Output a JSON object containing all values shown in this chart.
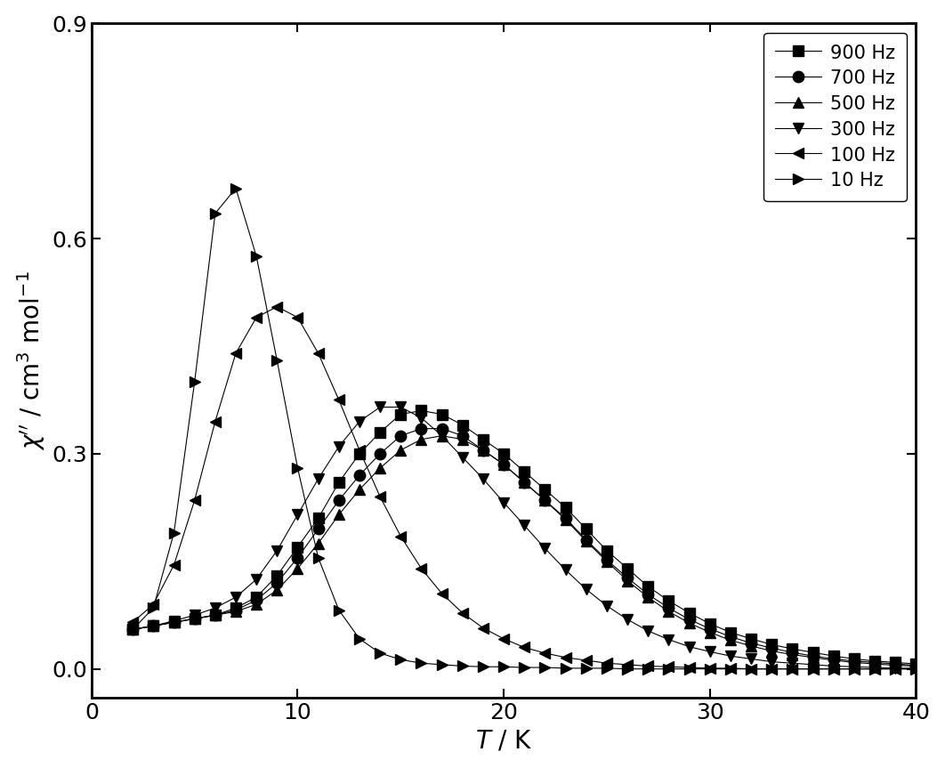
{
  "title": "",
  "xlabel": "$\\mathit{T}$ / K",
  "ylabel": "$\\chi$$^{\\prime\\prime}$ / cm$^{3}$ mol$^{-1}$",
  "xlim": [
    0,
    40
  ],
  "ylim": [
    -0.04,
    0.9
  ],
  "yticks": [
    0.0,
    0.3,
    0.6,
    0.9
  ],
  "xticks": [
    0,
    10,
    20,
    30,
    40
  ],
  "series": [
    {
      "label": "900 Hz",
      "marker": "s",
      "T": [
        2,
        3,
        4,
        5,
        6,
        7,
        8,
        9,
        10,
        11,
        12,
        13,
        14,
        15,
        16,
        17,
        18,
        19,
        20,
        21,
        22,
        23,
        24,
        25,
        26,
        27,
        28,
        29,
        30,
        31,
        32,
        33,
        34,
        35,
        36,
        37,
        38,
        39,
        40
      ],
      "chi": [
        0.055,
        0.06,
        0.065,
        0.07,
        0.075,
        0.085,
        0.1,
        0.13,
        0.17,
        0.21,
        0.26,
        0.3,
        0.33,
        0.355,
        0.36,
        0.355,
        0.34,
        0.32,
        0.3,
        0.275,
        0.25,
        0.225,
        0.195,
        0.165,
        0.14,
        0.115,
        0.095,
        0.078,
        0.063,
        0.051,
        0.042,
        0.034,
        0.028,
        0.023,
        0.018,
        0.014,
        0.011,
        0.009,
        0.007
      ]
    },
    {
      "label": "700 Hz",
      "marker": "o",
      "T": [
        2,
        3,
        4,
        5,
        6,
        7,
        8,
        9,
        10,
        11,
        12,
        13,
        14,
        15,
        16,
        17,
        18,
        19,
        20,
        21,
        22,
        23,
        24,
        25,
        26,
        27,
        28,
        29,
        30,
        31,
        32,
        33,
        34,
        35,
        36,
        37,
        38,
        39,
        40
      ],
      "chi": [
        0.055,
        0.06,
        0.065,
        0.07,
        0.075,
        0.082,
        0.096,
        0.12,
        0.155,
        0.195,
        0.235,
        0.27,
        0.3,
        0.325,
        0.335,
        0.335,
        0.325,
        0.305,
        0.285,
        0.26,
        0.235,
        0.21,
        0.18,
        0.152,
        0.127,
        0.104,
        0.085,
        0.069,
        0.056,
        0.045,
        0.036,
        0.029,
        0.023,
        0.018,
        0.014,
        0.011,
        0.009,
        0.007,
        0.005
      ]
    },
    {
      "label": "500 Hz",
      "marker": "^",
      "T": [
        2,
        3,
        4,
        5,
        6,
        7,
        8,
        9,
        10,
        11,
        12,
        13,
        14,
        15,
        16,
        17,
        18,
        19,
        20,
        21,
        22,
        23,
        24,
        25,
        26,
        27,
        28,
        29,
        30,
        31,
        32,
        33,
        34,
        35,
        36,
        37,
        38,
        39,
        40
      ],
      "chi": [
        0.055,
        0.06,
        0.065,
        0.07,
        0.075,
        0.08,
        0.09,
        0.11,
        0.14,
        0.175,
        0.215,
        0.25,
        0.28,
        0.305,
        0.32,
        0.325,
        0.32,
        0.305,
        0.285,
        0.26,
        0.235,
        0.208,
        0.178,
        0.15,
        0.123,
        0.1,
        0.08,
        0.064,
        0.051,
        0.04,
        0.032,
        0.025,
        0.02,
        0.016,
        0.012,
        0.009,
        0.007,
        0.005,
        0.004
      ]
    },
    {
      "label": "300 Hz",
      "marker": "v",
      "T": [
        2,
        3,
        4,
        5,
        6,
        7,
        8,
        9,
        10,
        11,
        12,
        13,
        14,
        15,
        16,
        17,
        18,
        19,
        20,
        21,
        22,
        23,
        24,
        25,
        26,
        27,
        28,
        29,
        30,
        31,
        32,
        33,
        34,
        35,
        36,
        37,
        38,
        39,
        40
      ],
      "chi": [
        0.055,
        0.06,
        0.067,
        0.075,
        0.085,
        0.1,
        0.125,
        0.165,
        0.215,
        0.265,
        0.31,
        0.345,
        0.365,
        0.365,
        0.35,
        0.325,
        0.295,
        0.265,
        0.232,
        0.2,
        0.168,
        0.138,
        0.111,
        0.088,
        0.069,
        0.053,
        0.041,
        0.031,
        0.024,
        0.018,
        0.014,
        0.01,
        0.008,
        0.006,
        0.004,
        0.003,
        0.002,
        0.001,
        0.001
      ]
    },
    {
      "label": "100 Hz",
      "marker": "<",
      "T": [
        2,
        3,
        4,
        5,
        6,
        7,
        8,
        9,
        10,
        11,
        12,
        13,
        14,
        15,
        16,
        17,
        18,
        19,
        20,
        21,
        22,
        23,
        24,
        25,
        26,
        27,
        28,
        29,
        30,
        31,
        32,
        33,
        34,
        35,
        36,
        37,
        38,
        39,
        40
      ],
      "chi": [
        0.065,
        0.09,
        0.145,
        0.235,
        0.345,
        0.44,
        0.49,
        0.505,
        0.49,
        0.44,
        0.375,
        0.305,
        0.24,
        0.185,
        0.14,
        0.105,
        0.078,
        0.057,
        0.042,
        0.03,
        0.022,
        0.016,
        0.012,
        0.008,
        0.006,
        0.004,
        0.003,
        0.002,
        0.001,
        0.001,
        0.0,
        0.0,
        0.0,
        0.0,
        0.0,
        0.0,
        0.0,
        0.0,
        0.0
      ]
    },
    {
      "label": "10 Hz",
      "marker": ">",
      "T": [
        2,
        3,
        4,
        5,
        6,
        7,
        8,
        9,
        10,
        11,
        12,
        13,
        14,
        15,
        16,
        17,
        18,
        19,
        20,
        21,
        22,
        23,
        24,
        25,
        26,
        27,
        28,
        29,
        30,
        31,
        32,
        33,
        34,
        35,
        36,
        37,
        38,
        39,
        40
      ],
      "chi": [
        0.055,
        0.085,
        0.19,
        0.4,
        0.635,
        0.67,
        0.575,
        0.43,
        0.28,
        0.155,
        0.082,
        0.042,
        0.022,
        0.013,
        0.008,
        0.006,
        0.004,
        0.003,
        0.003,
        0.002,
        0.002,
        0.001,
        0.001,
        0.001,
        0.0,
        0.0,
        0.0,
        0.0,
        0.0,
        0.0,
        0.0,
        0.0,
        0.0,
        0.0,
        0.0,
        0.0,
        0.0,
        0.0,
        0.0
      ]
    }
  ],
  "color": "#000000",
  "markersize": 9,
  "linewidth": 0.8,
  "legend_fontsize": 15,
  "axis_fontsize": 20,
  "tick_fontsize": 18
}
